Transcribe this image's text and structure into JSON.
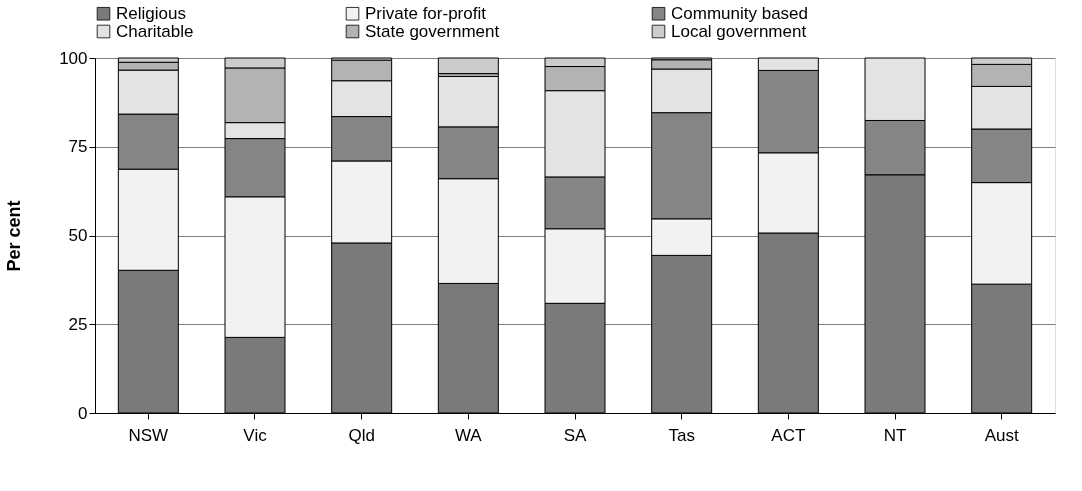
{
  "chart_data": {
    "type": "bar",
    "stacked": true,
    "ylabel": "Per cent",
    "categories": [
      "NSW",
      "Vic",
      "Qld",
      "WA",
      "SA",
      "Tas",
      "ACT",
      "NT",
      "Aust"
    ],
    "series": [
      {
        "name": "Religious",
        "color": "#7a7a7a",
        "values": [
          40.2,
          21.3,
          47.9,
          36.5,
          30.9,
          44.4,
          50.7,
          67.1,
          36.3
        ]
      },
      {
        "name": "Private for-profit",
        "color": "#f2f2f2",
        "values": [
          28.5,
          39.6,
          23.1,
          29.5,
          21.0,
          10.3,
          22.6,
          null,
          28.6
        ]
      },
      {
        "name": "Community based",
        "color": "#858585",
        "values": [
          15.5,
          16.4,
          12.5,
          14.6,
          14.6,
          29.9,
          23.2,
          15.3,
          15.1
        ]
      },
      {
        "name": "Charitable",
        "color": "#e3e3e3",
        "values": [
          12.4,
          4.5,
          10.1,
          14.2,
          24.3,
          12.3,
          3.5,
          17.6,
          12.0
        ]
      },
      {
        "name": "State government",
        "color": "#b3b3b3",
        "values": [
          2.2,
          15.4,
          5.8,
          0.8,
          6.8,
          2.6,
          null,
          null,
          6.2
        ]
      },
      {
        "name": "Local government",
        "color": "#cccccc",
        "values": [
          1.2,
          2.8,
          0.6,
          4.4,
          2.4,
          0.5,
          null,
          null,
          1.8
        ]
      }
    ],
    "ylim": [
      0,
      100
    ],
    "yticks": [
      0,
      25,
      50,
      75,
      100
    ],
    "grid": "y",
    "legend": "top"
  }
}
